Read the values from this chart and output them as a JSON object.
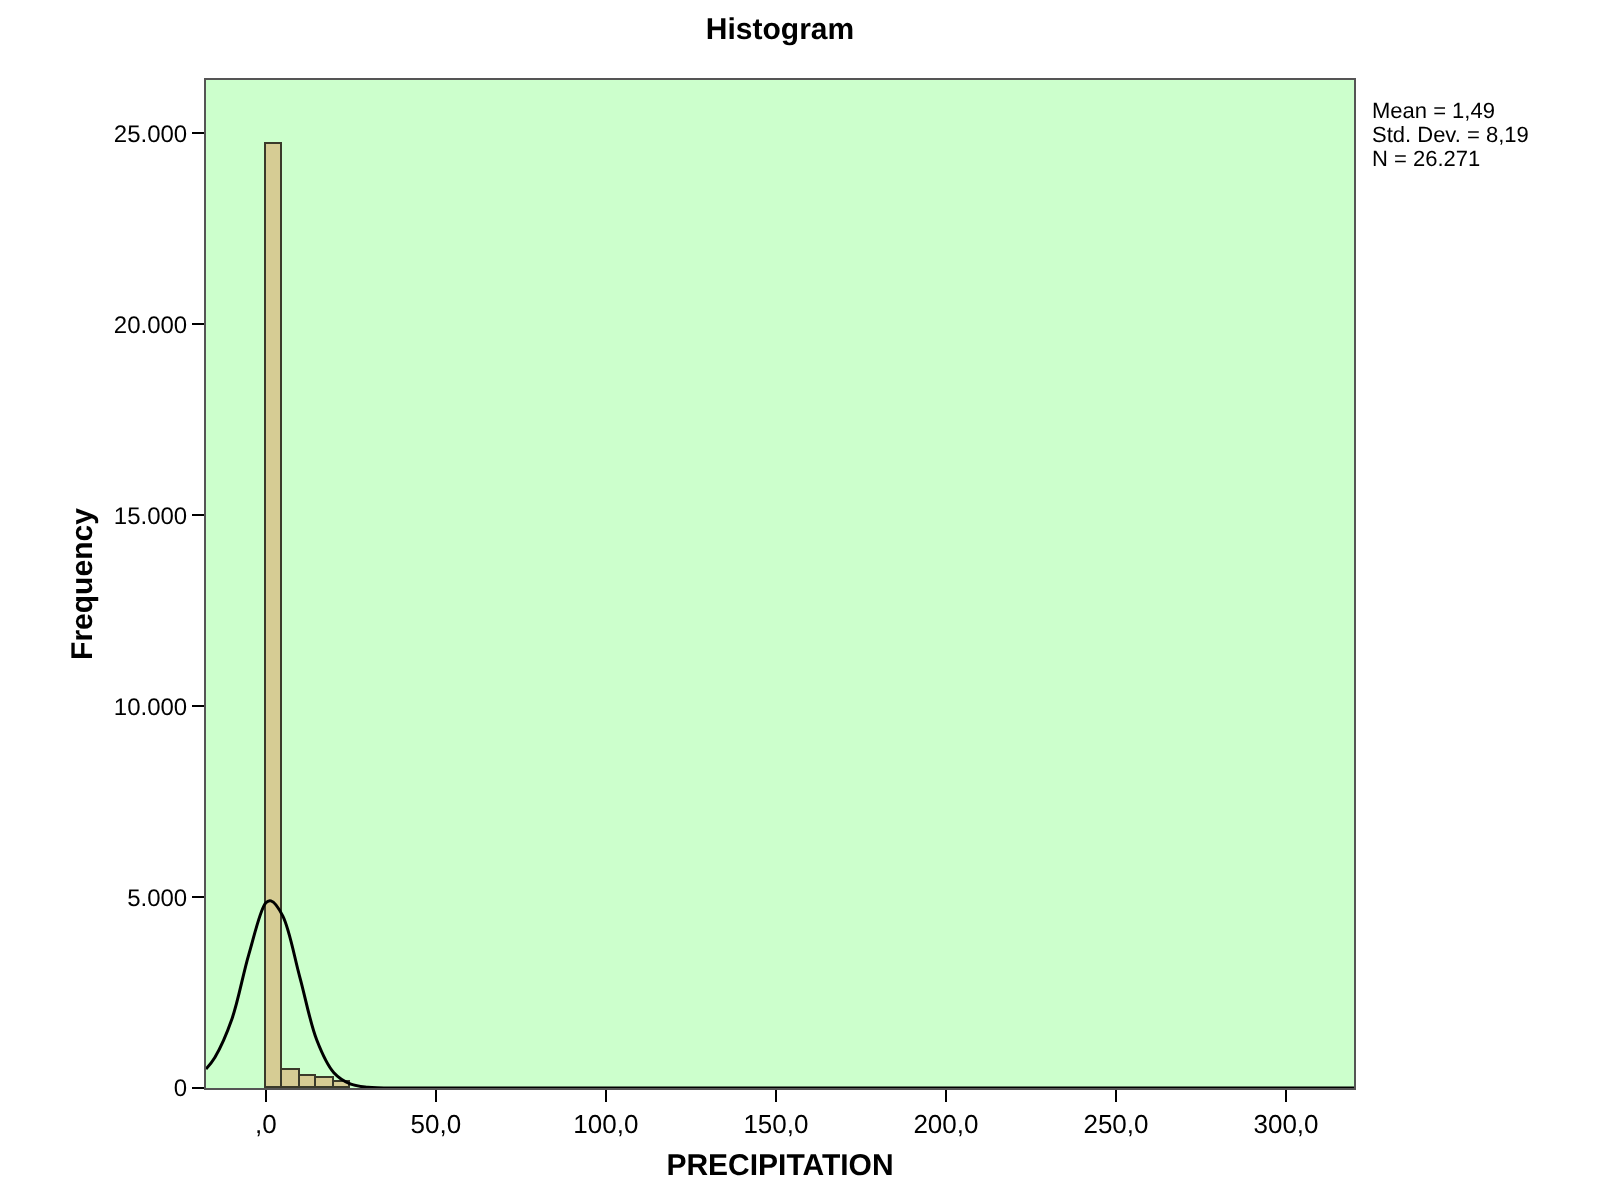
{
  "chart_data": {
    "type": "histogram",
    "title": "Histogram",
    "xlabel": "PRECIPITATION",
    "ylabel": "Frequency",
    "bins": [
      0,
      5,
      10,
      15,
      20,
      25
    ],
    "values": [
      24700,
      450,
      330,
      240,
      170
    ],
    "color": "#d6cc94",
    "series": [
      {
        "type": "line",
        "color": "#000000",
        "x": [
          -17.6,
          -15,
          -10,
          -5,
          0,
          1.5,
          5,
          10,
          15,
          20,
          25,
          30,
          40,
          60,
          100,
          200,
          320
        ],
        "values": [
          500,
          800,
          1800,
          3500,
          4850,
          4900,
          4500,
          2900,
          1250,
          400,
          100,
          20,
          0,
          0,
          0,
          0,
          0
        ]
      }
    ],
    "xlim": [
      -17.6,
      320
    ],
    "xticks": [
      {
        "value": 0,
        "label": ",0"
      },
      {
        "value": 50,
        "label": "50,0"
      },
      {
        "value": 100,
        "label": "100,0"
      },
      {
        "value": 150,
        "label": "150,0"
      },
      {
        "value": 200,
        "label": "200,0"
      },
      {
        "value": 250,
        "label": "250,0"
      },
      {
        "value": 300,
        "label": "300,0"
      }
    ],
    "ylim": [
      0,
      26400
    ],
    "yticks": [
      0,
      {
        "value": 5000,
        "label": "5.000"
      },
      {
        "value": 10000,
        "label": "10.000"
      },
      {
        "value": 15000,
        "label": "15.000"
      },
      {
        "value": 20000,
        "label": "20.000"
      },
      {
        "value": 25000,
        "label": "25.000"
      }
    ],
    "grid": false,
    "annotations": [
      "Mean = 1,49",
      "Std. Dev. = 8,19",
      "N = 26.271"
    ]
  }
}
